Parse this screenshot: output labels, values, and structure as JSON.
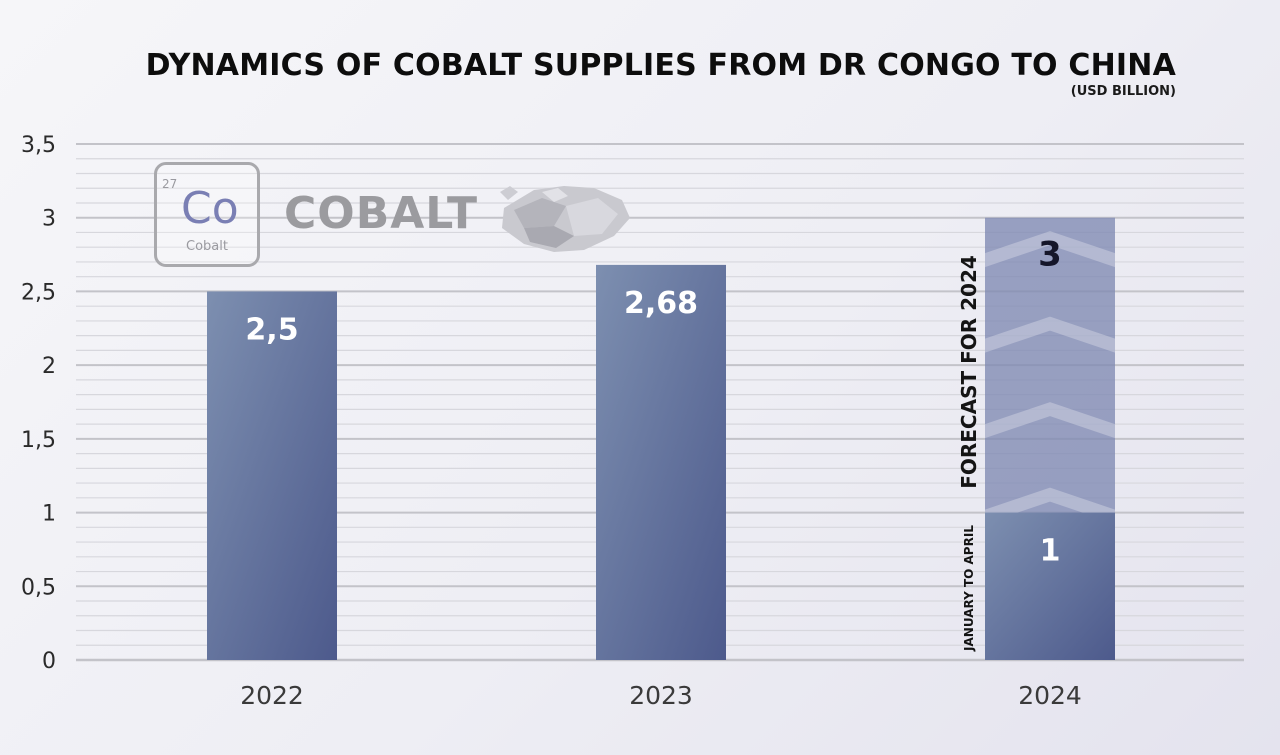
{
  "header": {
    "title": "DYNAMICS OF COBALT SUPPLIES FROM DR CONGO TO CHINA",
    "subtitle": "(USD BILLION)"
  },
  "logo": {
    "atomic_number": "27",
    "symbol": "Co",
    "element_name": "Cobalt",
    "wordmark": "COBALT"
  },
  "annotations": {
    "forecast": "FORECAST FOR 2024",
    "period": "JANUARY TO APRIL"
  },
  "colors": {
    "bar_light": "#7d8fb0",
    "bar_dark": "#4d5a8c",
    "forecast_fill": "#7f89b2",
    "grid_major": "#c3c3c9",
    "grid_minor": "#d7d7dd",
    "text": "#141414",
    "bar_label": "#ffffff"
  },
  "chart_data": {
    "type": "bar",
    "title": "DYNAMICS OF COBALT SUPPLIES FROM DR CONGO TO CHINA",
    "subtitle": "(USD BILLION)",
    "categories": [
      "2022",
      "2023",
      "2024"
    ],
    "values": [
      2.5,
      2.68,
      1
    ],
    "value_labels": [
      "2,5",
      "2,68",
      "1"
    ],
    "forecast": {
      "category": "2024",
      "value": 3,
      "label": "3"
    },
    "ylim": [
      0,
      3.5
    ],
    "yticks": [
      0,
      0.5,
      1,
      1.5,
      2,
      2.5,
      3,
      3.5
    ],
    "ytick_labels": [
      "0",
      "0,5",
      "1",
      "1,5",
      "2",
      "2,5",
      "3",
      "3,5"
    ],
    "grid": true,
    "legend": "none",
    "xlabel": "",
    "ylabel": ""
  }
}
